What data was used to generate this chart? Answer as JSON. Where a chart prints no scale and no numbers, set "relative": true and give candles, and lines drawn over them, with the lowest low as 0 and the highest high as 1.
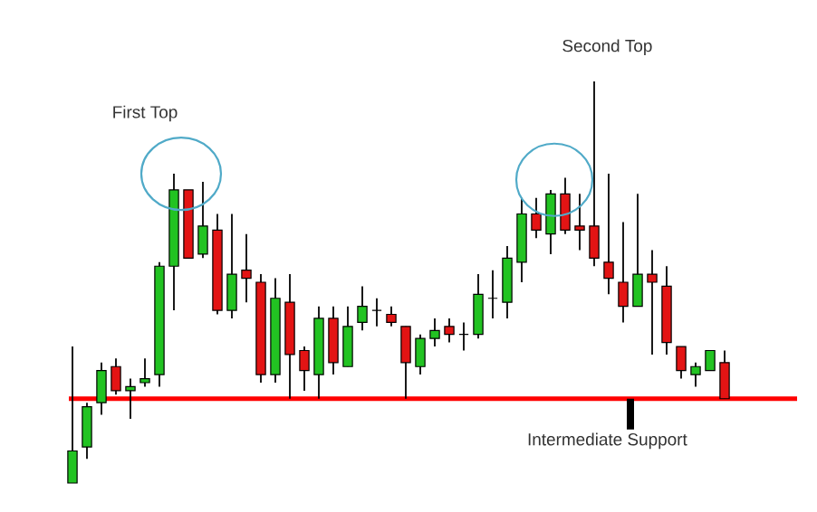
{
  "chart_data": {
    "type": "candlestick",
    "relative": true,
    "categories": [
      null,
      null,
      null,
      null,
      null,
      null,
      null,
      null,
      null,
      null,
      null,
      null,
      null,
      null,
      null,
      null,
      null,
      null,
      null,
      null,
      null,
      null,
      null,
      null,
      null,
      null,
      null,
      null,
      null,
      null,
      null,
      null,
      null,
      null,
      null,
      null,
      null,
      null,
      null,
      null,
      null,
      null,
      null,
      null,
      null,
      null
    ],
    "ohlc": [
      [
        0,
        0.34,
        0,
        0.08
      ],
      [
        0.09,
        0.2,
        0.06,
        0.19
      ],
      [
        0.2,
        0.3,
        0.17,
        0.28
      ],
      [
        0.29,
        0.31,
        0.22,
        0.23
      ],
      [
        0.23,
        0.26,
        0.16,
        0.24
      ],
      [
        0.25,
        0.31,
        0.24,
        0.26
      ],
      [
        0.27,
        0.55,
        0.24,
        0.54
      ],
      [
        0.54,
        0.77,
        0.43,
        0.73
      ],
      [
        0.73,
        0.73,
        0.56,
        0.56
      ],
      [
        0.57,
        0.75,
        0.56,
        0.64
      ],
      [
        0.63,
        0.67,
        0.42,
        0.43
      ],
      [
        0.43,
        0.67,
        0.41,
        0.52
      ],
      [
        0.53,
        0.62,
        0.45,
        0.51
      ],
      [
        0.5,
        0.52,
        0.25,
        0.27
      ],
      [
        0.27,
        0.51,
        0.25,
        0.46
      ],
      [
        0.45,
        0.52,
        0.21,
        0.32
      ],
      [
        0.33,
        0.34,
        0.23,
        0.28
      ],
      [
        0.27,
        0.44,
        0.21,
        0.41
      ],
      [
        0.41,
        0.44,
        0.27,
        0.3
      ],
      [
        0.29,
        0.44,
        0.29,
        0.39
      ],
      [
        0.4,
        0.49,
        0.38,
        0.44
      ],
      [
        0.43,
        0.46,
        0.39,
        0.43
      ],
      [
        0.42,
        0.44,
        0.39,
        0.4
      ],
      [
        0.39,
        0.39,
        0.21,
        0.3
      ],
      [
        0.29,
        0.37,
        0.27,
        0.36
      ],
      [
        0.36,
        0.41,
        0.34,
        0.38
      ],
      [
        0.39,
        0.41,
        0.35,
        0.37
      ],
      [
        0.37,
        0.4,
        0.33,
        0.37
      ],
      [
        0.37,
        0.52,
        0.36,
        0.47
      ],
      [
        0.46,
        0.53,
        0.41,
        0.46
      ],
      [
        0.45,
        0.59,
        0.41,
        0.56
      ],
      [
        0.55,
        0.71,
        0.5,
        0.67
      ],
      [
        0.67,
        0.71,
        0.61,
        0.63
      ],
      [
        0.62,
        0.73,
        0.57,
        0.72
      ],
      [
        0.72,
        0.76,
        0.62,
        0.63
      ],
      [
        0.64,
        0.72,
        0.58,
        0.63
      ],
      [
        0.64,
        1,
        0.54,
        0.56
      ],
      [
        0.55,
        0.77,
        0.47,
        0.51
      ],
      [
        0.5,
        0.65,
        0.4,
        0.44
      ],
      [
        0.44,
        0.72,
        0.44,
        0.52
      ],
      [
        0.52,
        0.58,
        0.32,
        0.5
      ],
      [
        0.49,
        0.54,
        0.32,
        0.35
      ],
      [
        0.34,
        0.34,
        0.26,
        0.28
      ],
      [
        0.27,
        0.3,
        0.24,
        0.29
      ],
      [
        0.28,
        0.33,
        0.28,
        0.33
      ],
      [
        0.3,
        0.33,
        0.21,
        0.21
      ]
    ],
    "colors": [
      "#22c322",
      "#22c322",
      "#22c322",
      "#e31414",
      "#22c322",
      "#22c322",
      "#22c322",
      "#22c322",
      "#e31414",
      "#22c322",
      "#e31414",
      "#22c322",
      "#e31414",
      "#e31414",
      "#22c322",
      "#e31414",
      "#e31414",
      "#22c322",
      "#e31414",
      "#22c322",
      "#22c322",
      "#000000",
      "#e31414",
      "#e31414",
      "#22c322",
      "#22c322",
      "#e31414",
      "#000000",
      "#22c322",
      "#000000",
      "#22c322",
      "#22c322",
      "#e31414",
      "#22c322",
      "#e31414",
      "#e31414",
      "#e31414",
      "#e31414",
      "#e31414",
      "#22c322",
      "#e31414",
      "#e31414",
      "#e31414",
      "#22c322",
      "#22c322",
      "#e31414"
    ],
    "ref_lines": [
      {
        "axis": "y",
        "value": 0.21,
        "color": "#ff0000"
      }
    ],
    "annotations": [
      "First Top",
      "Second Top",
      "Intermediate Support"
    ]
  }
}
